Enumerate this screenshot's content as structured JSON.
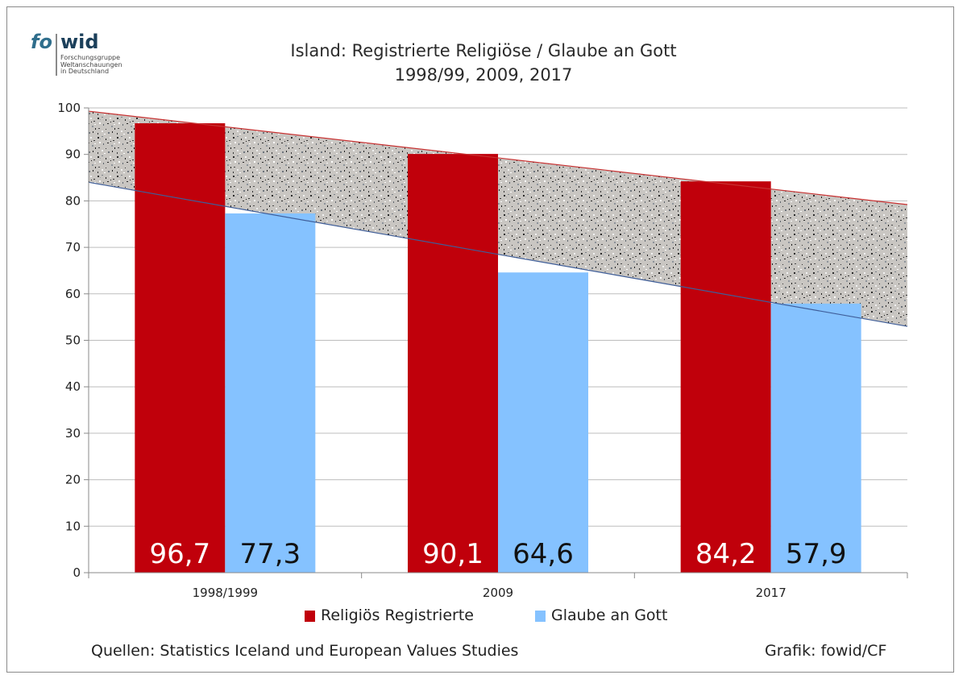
{
  "logo": {
    "mark_fo": "fo",
    "mark_wid": "wid",
    "lines": [
      "Forschungsgruppe",
      "Weltanschauungen",
      "in Deutschland"
    ]
  },
  "title": {
    "line1": "Island: Registrierte Religiöse / Glaube an Gott",
    "line2": "1998/99, 2009, 2017"
  },
  "source": "Quellen: Statistics Iceland und European Values Studies",
  "credit": "Grafik: fowid/CF",
  "colors": {
    "registrierte": "#c0000b",
    "glaube": "#85c2ff",
    "upper_trend": "#c83232",
    "lower_trend": "#3f5e99",
    "band_fill": "#c9c6c2"
  },
  "chart_data": {
    "type": "bar",
    "title": "Island: Registrierte Religiöse / Glaube an Gott",
    "subtitle": "1998/99, 2009, 2017",
    "categories": [
      "1998/1999",
      "2009",
      "2017"
    ],
    "series": [
      {
        "name": "Religiös Registrierte",
        "values": [
          96.7,
          90.1,
          84.2
        ],
        "labels": [
          "96,7",
          "90,1",
          "84,2"
        ]
      },
      {
        "name": "Glaube an Gott",
        "values": [
          77.3,
          64.6,
          57.9
        ],
        "labels": [
          "77,3",
          "64,6",
          "57,9"
        ]
      }
    ],
    "trend_band": {
      "upper": {
        "start": 99.3,
        "end": 79.2
      },
      "lower": {
        "start": 84.0,
        "end": 53.0
      }
    },
    "ylim": [
      0,
      100
    ],
    "yticks": [
      0,
      10,
      20,
      30,
      40,
      50,
      60,
      70,
      80,
      90,
      100
    ],
    "grid": true,
    "legend_position": "bottom"
  }
}
